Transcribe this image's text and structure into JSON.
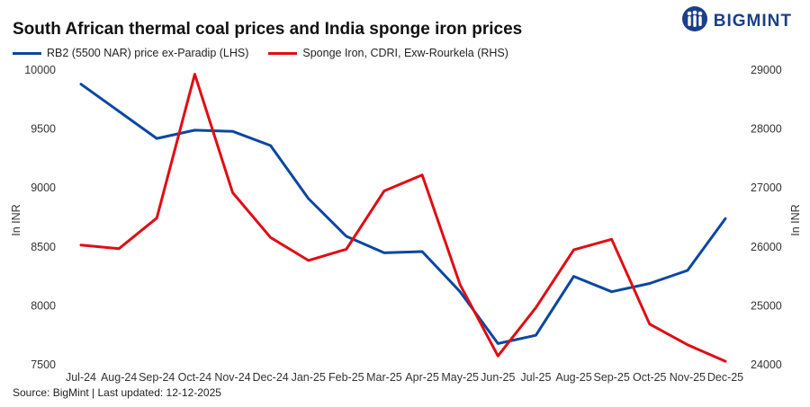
{
  "header": {
    "title": "South African thermal coal prices and India sponge iron prices",
    "brand": "BIGMINT"
  },
  "footer": {
    "source": "Source: BigMint | Last updated: 12-12-2025"
  },
  "colors": {
    "rb2": "#0a47a0",
    "sponge": "#e00d14",
    "brand": "#1a3f8c"
  },
  "chart_data": {
    "type": "line",
    "title": "South African thermal coal prices and India sponge iron prices",
    "categories": [
      "Jul-24",
      "Aug-24",
      "Sep-24",
      "Oct-24",
      "Nov-24",
      "Dec-24",
      "Jan-25",
      "Feb-25",
      "Mar-25",
      "Apr-25",
      "May-25",
      "Jun-25",
      "Jul-25",
      "Aug-25",
      "Sep-25",
      "Oct-25",
      "Nov-25",
      "Dec-25"
    ],
    "ylabel_left": "In INR",
    "ylabel_right": "In INR",
    "ylim_left": [
      7500,
      10000
    ],
    "ylim_right": [
      24000,
      29000
    ],
    "yticks_left": [
      7500,
      8000,
      8500,
      9000,
      9500,
      10000
    ],
    "yticks_right": [
      24000,
      25000,
      26000,
      27000,
      28000,
      29000
    ],
    "legend_position": "top-left",
    "grid": false,
    "series": [
      {
        "name": "RB2 (5500 NAR) price ex-Paradip (LHS)",
        "axis": "left",
        "color": "#0a47a0",
        "values": [
          9880,
          9650,
          9420,
          9490,
          9480,
          9360,
          8910,
          8590,
          8450,
          8460,
          8120,
          7680,
          7750,
          8250,
          8120,
          8190,
          8300,
          8740
        ]
      },
      {
        "name": "Sponge Iron, CDRI, Exw-Rourkela (RHS)",
        "axis": "right",
        "color": "#e00d14",
        "values": [
          26030,
          25970,
          26490,
          28930,
          26920,
          26160,
          25770,
          25960,
          26950,
          27220,
          25360,
          24150,
          24970,
          25950,
          26130,
          24690,
          24340,
          24060
        ]
      }
    ]
  }
}
